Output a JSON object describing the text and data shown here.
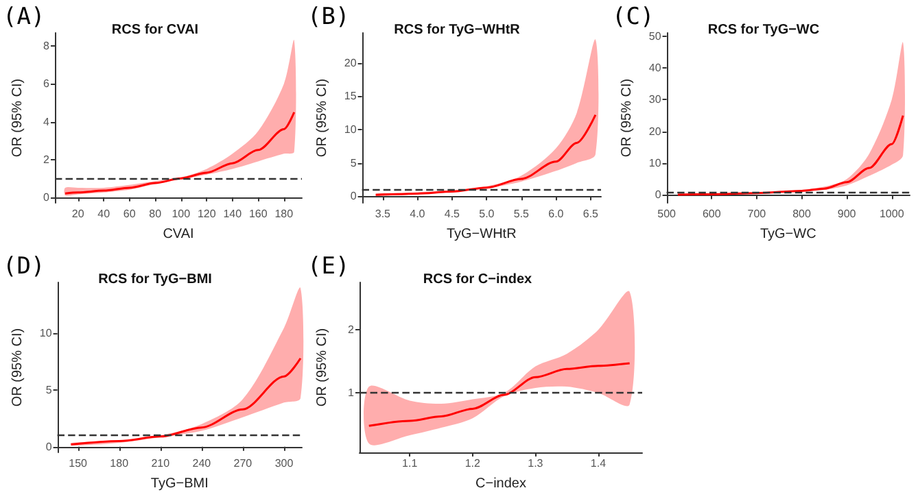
{
  "chart_data": [
    {
      "type": "line",
      "title": "RCS for CVAI",
      "xlabel": "CVAI",
      "ylabel": "OR (95% CI)",
      "annotations": [
        "(A)"
      ],
      "grid": false,
      "xlim": [
        2,
        194
      ],
      "xticks": [
        20,
        40,
        60,
        80,
        100,
        120,
        140,
        160,
        180
      ],
      "ylim": [
        -0.3,
        8.7
      ],
      "yticks": [
        0,
        2,
        4,
        6,
        8
      ],
      "ref_lines": [
        {
          "axis": "y",
          "value": 1,
          "color": "#333333",
          "line_style": "dashed"
        }
      ],
      "series": [
        {
          "color": "#ff0000",
          "x": [
            10,
            20,
            40,
            60,
            80,
            100,
            120,
            140,
            160,
            180,
            188
          ],
          "values": [
            0.2,
            0.25,
            0.35,
            0.5,
            0.75,
            1.0,
            1.3,
            1.8,
            2.5,
            3.6,
            4.5
          ],
          "lower": [
            0.1,
            0.15,
            0.25,
            0.4,
            0.7,
            0.95,
            1.2,
            1.5,
            1.9,
            2.3,
            2.4
          ],
          "upper": [
            0.5,
            0.5,
            0.5,
            0.65,
            0.85,
            1.05,
            1.5,
            2.3,
            3.5,
            6.0,
            8.3
          ]
        }
      ]
    },
    {
      "type": "line",
      "title": "RCS for TyG−WHtR",
      "xlabel": "TyG−WHtR",
      "ylabel": "OR (95% CI)",
      "annotations": [
        "(B)"
      ],
      "grid": false,
      "xlim": [
        3.2,
        6.65
      ],
      "xticks": [
        3.5,
        {
          "value": 4,
          "label": "4.0"
        },
        4.5,
        {
          "value": 5,
          "label": "5.0"
        },
        5.5,
        {
          "value": 6,
          "label": "6.0"
        },
        6.5
      ],
      "ylim": [
        -1,
        24.5
      ],
      "yticks": [
        0,
        5,
        10,
        15,
        20
      ],
      "ref_lines": [
        {
          "axis": "y",
          "value": 1,
          "color": "#333333",
          "line_style": "dashed"
        }
      ],
      "series": [
        {
          "color": "#ff0000",
          "x": [
            3.4,
            3.75,
            4.0,
            4.5,
            5.0,
            5.5,
            6.0,
            6.3,
            6.57
          ],
          "values": [
            0.2,
            0.3,
            0.4,
            0.7,
            1.3,
            2.6,
            5.2,
            8,
            12.2
          ],
          "lower": [
            0.05,
            0.2,
            0.3,
            0.6,
            1.2,
            2.2,
            3.8,
            5,
            6.3
          ],
          "upper": [
            0.4,
            0.5,
            0.6,
            0.9,
            1.5,
            3.1,
            7.2,
            12.5,
            23.5
          ]
        }
      ]
    },
    {
      "type": "line",
      "title": "RCS for TyG−WC",
      "xlabel": "TyG−WC",
      "ylabel": "OR (95% CI)",
      "annotations": [
        "(C)"
      ],
      "grid": false,
      "xlim": [
        500,
        1040
      ],
      "xticks": [
        500,
        600,
        700,
        800,
        900,
        1000
      ],
      "ylim": [
        -2.5,
        51
      ],
      "yticks": [
        0,
        10,
        20,
        30,
        40,
        50
      ],
      "ref_lines": [
        {
          "axis": "y",
          "value": 1,
          "color": "#333333",
          "line_style": "dashed"
        }
      ],
      "series": [
        {
          "color": "#ff0000",
          "x": [
            525,
            600,
            700,
            800,
            850,
            900,
            950,
            1000,
            1025
          ],
          "values": [
            0.1,
            0.2,
            0.6,
            1.3,
            2,
            4,
            8.5,
            16,
            25
          ],
          "lower": [
            0,
            0.1,
            0.4,
            1.1,
            1.6,
            3,
            6,
            9.5,
            12.5
          ],
          "upper": [
            0.4,
            0.5,
            0.8,
            1.6,
            2.6,
            5,
            13,
            30,
            48
          ]
        }
      ]
    },
    {
      "type": "line",
      "title": "RCS for TyG−BMI",
      "xlabel": "TyG−BMI",
      "ylabel": "OR (95% CI)",
      "annotations": [
        "(D)"
      ],
      "grid": false,
      "xlim": [
        135,
        313
      ],
      "xticks": [
        150,
        180,
        210,
        240,
        270,
        300
      ],
      "ylim": [
        -0.5,
        14.5
      ],
      "yticks": [
        0,
        5,
        10
      ],
      "ref_lines": [
        {
          "axis": "y",
          "value": 1,
          "color": "#333333",
          "line_style": "dashed"
        }
      ],
      "series": [
        {
          "color": "#ff0000",
          "x": [
            145,
            180,
            210,
            240,
            270,
            300,
            312
          ],
          "values": [
            0.2,
            0.5,
            0.9,
            1.7,
            3.3,
            6.2,
            7.8
          ],
          "lower": [
            0.1,
            0.35,
            0.85,
            1.4,
            2.6,
            3.9,
            4.3
          ],
          "upper": [
            0.35,
            0.55,
            1.0,
            2.0,
            4.2,
            10.5,
            14
          ]
        }
      ]
    },
    {
      "type": "line",
      "title": "RCS for C−index",
      "xlabel": "C−index",
      "ylabel": "OR (95% CI)",
      "annotations": [
        "(E)"
      ],
      "grid": false,
      "xlim": [
        1.02,
        1.47
      ],
      "xticks": [
        1.1,
        1.2,
        1.3,
        1.4
      ],
      "ylim": [
        0.06,
        2.75
      ],
      "yticks": [
        1,
        2
      ],
      "ref_lines": [
        {
          "axis": "y",
          "value": 1,
          "color": "#333333",
          "line_style": "dashed"
        }
      ],
      "series": [
        {
          "color": "#ff0000",
          "x": [
            1.035,
            1.1,
            1.15,
            1.2,
            1.25,
            1.3,
            1.35,
            1.4,
            1.45
          ],
          "values": [
            0.48,
            0.56,
            0.63,
            0.75,
            0.97,
            1.25,
            1.38,
            1.43,
            1.47
          ],
          "lower": [
            0.2,
            0.33,
            0.45,
            0.6,
            0.95,
            1.08,
            1.1,
            1.0,
            0.82
          ],
          "upper": [
            1.1,
            0.88,
            0.83,
            0.9,
            1.0,
            1.42,
            1.62,
            2.0,
            2.6
          ]
        }
      ]
    }
  ]
}
